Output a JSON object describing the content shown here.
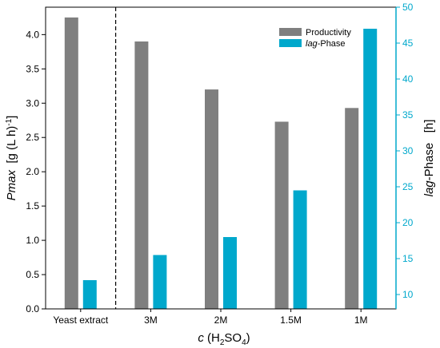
{
  "chart_data": {
    "type": "bar",
    "categories": [
      "Yeast extract",
      "3M",
      "2M",
      "1.5M",
      "1M"
    ],
    "series": [
      {
        "name": "Productivity",
        "axis": "left",
        "color": "#7f7f7f",
        "values": [
          4.25,
          3.9,
          3.2,
          2.73,
          2.93
        ]
      },
      {
        "name": "lag-Phase",
        "axis": "right",
        "color": "#00a8cc",
        "values": [
          12.0,
          15.5,
          18.0,
          24.5,
          47.0
        ]
      }
    ],
    "xlabel": {
      "italic": "c",
      "pre": " (H",
      "sub1": "2",
      "mid": "SO",
      "sub2": "4",
      "post": ")"
    },
    "ylabel_left": {
      "italic": "Pmax",
      "rest": "  [g (L h)",
      "sup": "-1",
      "end": "]"
    },
    "ylabel_right": {
      "italic": "lag",
      "rest": "-Phase   [h]"
    },
    "ylim_left": [
      0,
      4.4
    ],
    "ylim_right": [
      8,
      50
    ],
    "yticks_left": [
      "0.0",
      "0.5",
      "1.0",
      "1.5",
      "2.0",
      "2.5",
      "3.0",
      "3.5",
      "4.0"
    ],
    "yticks_right": [
      "10",
      "15",
      "20",
      "25",
      "30",
      "35",
      "40",
      "45",
      "50"
    ],
    "legend": {
      "position": "top-right",
      "entries": [
        {
          "color": "#7f7f7f",
          "label": "Productivity"
        },
        {
          "color": "#00a8cc",
          "label_italic": "lag",
          "label_rest": "-Phase"
        }
      ]
    },
    "separator": "dashed line between Yeast extract and 3M",
    "grid": false,
    "right_axis_color": "#00a8cc"
  }
}
